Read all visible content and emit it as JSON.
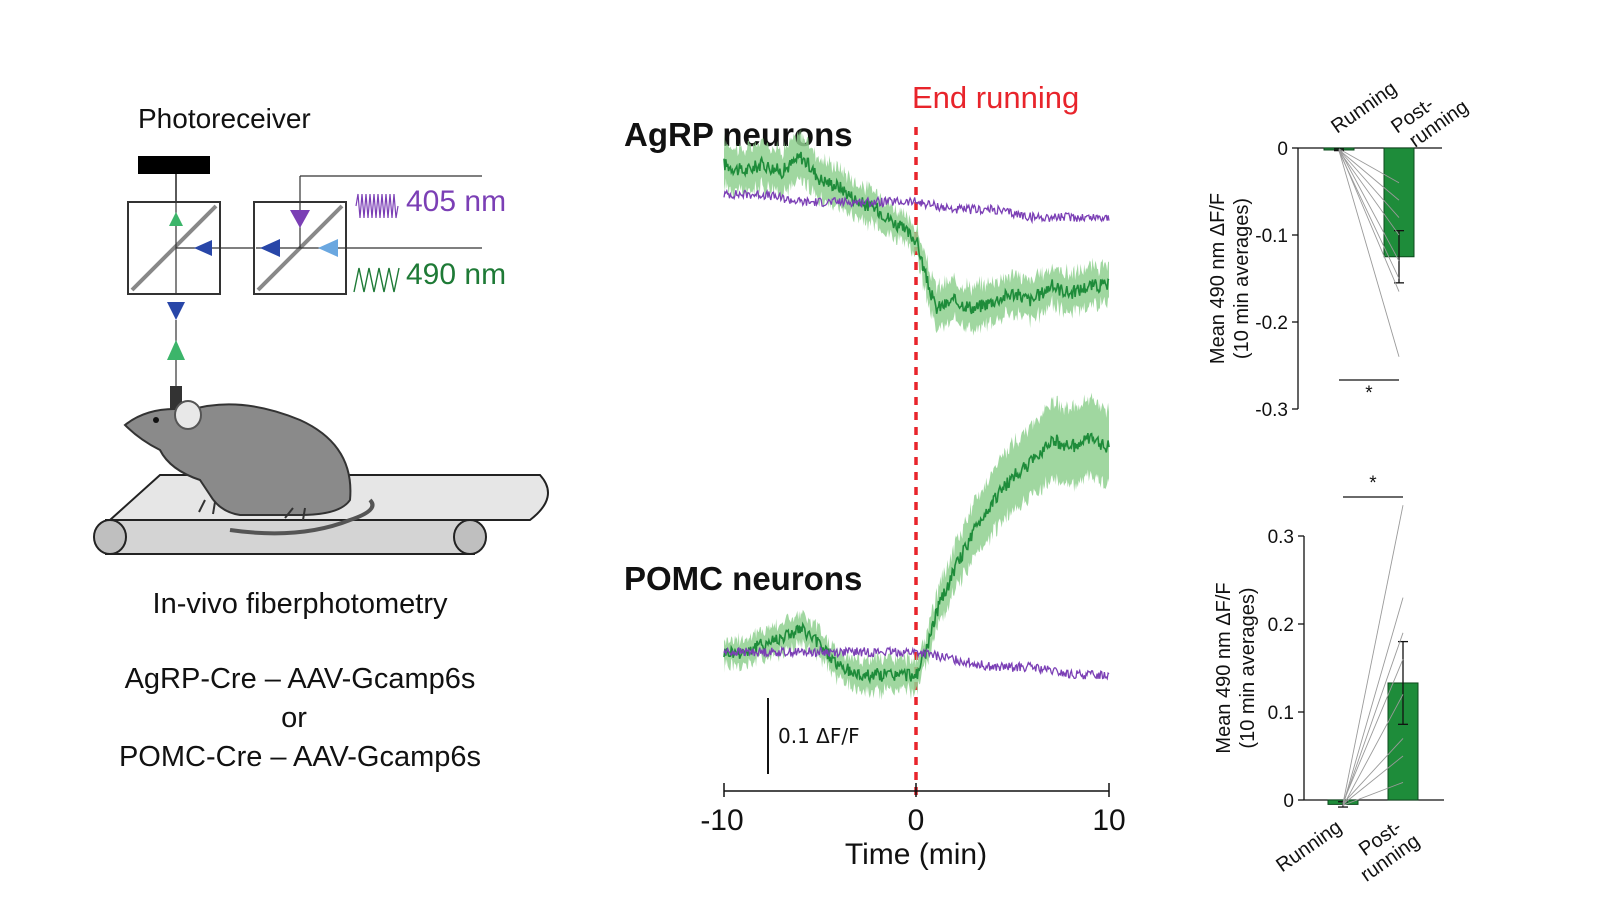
{
  "setup": {
    "photoreceiver_label": "Photoreceiver",
    "wave_405_label": "405 nm",
    "wave_490_label": "490 nm",
    "method_label": "In-vivo fiberphotometry",
    "line1": "AgRP-Cre – AAV-Gcamp6s",
    "line2": "or",
    "line3": "POMC-Cre – AAV-Gcamp6s"
  },
  "colors": {
    "green": "#1e8c3a",
    "green_band": "#8fd08f",
    "purple": "#7b3fb5",
    "red_dash": "#e8242b",
    "bar_green": "#1e8c3a"
  },
  "chart_data": [
    {
      "type": "line",
      "title": "AgRP neurons",
      "annotation": "End running",
      "xlabel": "Time (min)",
      "xlim": [
        -10,
        10
      ],
      "xticks": [
        "-10",
        "0",
        "10"
      ],
      "scale_bar": "0.1 ΔF/F",
      "series": [
        {
          "color": "green",
          "x": [
            -10,
            -9,
            -8,
            -7,
            -6,
            -5,
            -4,
            -3,
            -2,
            -1,
            0,
            0.5,
            1,
            2,
            3,
            4,
            5,
            6,
            7,
            8,
            9,
            10
          ],
          "y": [
            0.1,
            0.09,
            0.1,
            0.09,
            0.11,
            0.08,
            0.07,
            0.05,
            0.04,
            0.02,
            0.0,
            -0.05,
            -0.09,
            -0.08,
            -0.09,
            -0.08,
            -0.07,
            -0.08,
            -0.06,
            -0.07,
            -0.06,
            -0.06
          ]
        },
        {
          "color": "purple",
          "x": [
            -10,
            -8,
            -6,
            -4,
            -2,
            0,
            2,
            4,
            6,
            8,
            10
          ],
          "y": [
            0.06,
            0.06,
            0.05,
            0.05,
            0.05,
            0.05,
            0.04,
            0.04,
            0.03,
            0.03,
            0.03
          ]
        }
      ]
    },
    {
      "type": "line",
      "title": "POMC neurons",
      "xlabel": "Time (min)",
      "xlim": [
        -10,
        10
      ],
      "xticks": [
        "-10",
        "0",
        "10"
      ],
      "series": [
        {
          "color": "green",
          "x": [
            -10,
            -9,
            -8,
            -7,
            -6,
            -5,
            -4,
            -3,
            -2,
            -1,
            0,
            0.5,
            1,
            2,
            3,
            4,
            5,
            6,
            7,
            8,
            9,
            10
          ],
          "y": [
            0.0,
            0.0,
            0.01,
            0.02,
            0.03,
            0.01,
            -0.02,
            -0.03,
            -0.03,
            -0.03,
            -0.03,
            0.0,
            0.05,
            0.11,
            0.16,
            0.2,
            0.23,
            0.25,
            0.28,
            0.27,
            0.28,
            0.27
          ]
        },
        {
          "color": "purple",
          "x": [
            -10,
            -8,
            -6,
            -4,
            -2,
            0,
            2,
            4,
            6,
            8,
            10
          ],
          "y": [
            0.0,
            0.0,
            0.0,
            0.0,
            0.0,
            0.0,
            -0.01,
            -0.02,
            -0.02,
            -0.03,
            -0.03
          ]
        }
      ]
    },
    {
      "type": "bar",
      "ylabel": "Mean 490 nm ΔF/F",
      "ylabel2": "(10 min averages)",
      "categories": [
        "Running",
        "Post-\nrunning"
      ],
      "category_lines": [
        [
          "Running"
        ],
        [
          "Post-",
          "running"
        ]
      ],
      "values": [
        -0.002,
        -0.125
      ],
      "errors": [
        0.001,
        0.03
      ],
      "ylim": [
        -0.3,
        0.0
      ],
      "yticks": [
        0,
        -0.1,
        -0.2,
        -0.3
      ],
      "ytick_labels": [
        "0",
        "-0.1",
        "-0.2",
        "-0.3"
      ],
      "significance": "*",
      "paired": [
        [
          -0.001,
          -0.04
        ],
        [
          -0.002,
          -0.06
        ],
        [
          -0.003,
          -0.1
        ],
        [
          -0.001,
          -0.13
        ],
        [
          -0.004,
          -0.15
        ],
        [
          -0.002,
          -0.165
        ],
        [
          -0.003,
          -0.24
        ],
        [
          -0.002,
          -0.08
        ]
      ]
    },
    {
      "type": "bar",
      "ylabel": "Mean 490 nm ΔF/F",
      "ylabel2": "(10 min averages)",
      "categories": [
        "Running",
        "Post-\nrunning"
      ],
      "category_lines": [
        [
          "Running"
        ],
        [
          "Post-",
          "running"
        ]
      ],
      "values": [
        -0.005,
        0.133
      ],
      "errors": [
        0.003,
        0.047
      ],
      "ylim": [
        0.0,
        0.3
      ],
      "yticks": [
        0,
        0.1,
        0.2,
        0.3
      ],
      "ytick_labels": [
        "0",
        "0.1",
        "0.2",
        "0.3"
      ],
      "significance": "*",
      "paired": [
        [
          -0.004,
          0.335
        ],
        [
          -0.006,
          0.23
        ],
        [
          -0.005,
          0.19
        ],
        [
          -0.003,
          0.16
        ],
        [
          -0.007,
          0.12
        ],
        [
          -0.004,
          0.07
        ],
        [
          -0.005,
          0.05
        ],
        [
          -0.006,
          0.02
        ]
      ]
    }
  ]
}
